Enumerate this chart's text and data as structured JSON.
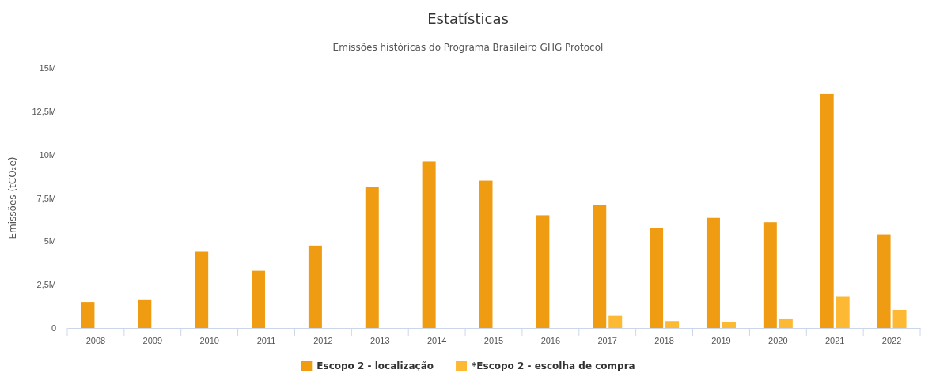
{
  "chart_data": {
    "type": "bar",
    "title": "Estatísticas",
    "subtitle": "Emissões históricas do Programa Brasileiro GHG Protocol",
    "ylabel": "Emissões (tCO₂e)",
    "categories": [
      "2008",
      "2009",
      "2010",
      "2011",
      "2012",
      "2013",
      "2014",
      "2015",
      "2016",
      "2017",
      "2018",
      "2019",
      "2020",
      "2021",
      "2022"
    ],
    "series": [
      {
        "name": "Escopo 2 - localização",
        "color": "#f09c12",
        "values": [
          1.5,
          1.65,
          4.4,
          3.3,
          4.75,
          8.15,
          9.6,
          8.5,
          6.5,
          7.1,
          5.75,
          6.35,
          6.1,
          13.5,
          5.4
        ]
      },
      {
        "name": "*Escopo 2 - escolha de compra",
        "color": "#fdb933",
        "values": [
          null,
          null,
          null,
          null,
          null,
          null,
          null,
          null,
          null,
          0.7,
          0.4,
          0.35,
          0.55,
          1.8,
          1.05
        ]
      }
    ],
    "ylim": [
      0,
      15
    ],
    "yticks": [
      0,
      {
        "value": 2.5,
        "label": "2,5M"
      },
      {
        "value": 5,
        "label": "5M"
      },
      {
        "value": 7.5,
        "label": "7,5M"
      },
      {
        "value": 10,
        "label": "10M"
      },
      {
        "value": 12.5,
        "label": "12,5M"
      },
      {
        "value": 15,
        "label": "15M"
      }
    ],
    "grid": false,
    "legend": "bottom"
  }
}
